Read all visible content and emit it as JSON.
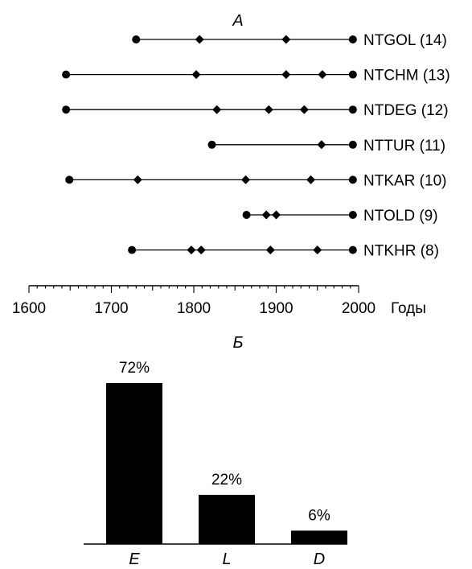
{
  "chart_data": [
    {
      "type": "timeline",
      "title": "А",
      "xlabel": "Годы",
      "xlim": [
        1600,
        2000
      ],
      "xticks": [
        "1600",
        "1700",
        "1800",
        "1900",
        "2000"
      ],
      "series": [
        {
          "name": "NTGOL (14)",
          "start": 1730,
          "end": 1993,
          "events": [
            1807,
            1912
          ]
        },
        {
          "name": "NTCHM (13)",
          "start": 1645,
          "end": 1993,
          "events": [
            1803,
            1912,
            1956
          ]
        },
        {
          "name": "NTDEG (12)",
          "start": 1645,
          "end": 1993,
          "events": [
            1828,
            1891,
            1934
          ]
        },
        {
          "name": "NTTUR (11)",
          "start": 1822,
          "end": 1993,
          "events": [
            1955
          ]
        },
        {
          "name": "NTKAR (10)",
          "start": 1649,
          "end": 1993,
          "events": [
            1732,
            1863,
            1942
          ]
        },
        {
          "name": "NTOLD (9)",
          "start": 1864,
          "end": 1993,
          "events": [
            1888,
            1900
          ]
        },
        {
          "name": "NTKHR (8)",
          "start": 1725,
          "end": 1993,
          "events": [
            1797,
            1809,
            1893,
            1950
          ]
        }
      ]
    },
    {
      "type": "bar",
      "title": "Б",
      "categories": [
        "E",
        "L",
        "D"
      ],
      "values": [
        72,
        22,
        6
      ],
      "value_labels": [
        "72%",
        "22%",
        "6%"
      ],
      "ylim": [
        0,
        72
      ]
    }
  ]
}
